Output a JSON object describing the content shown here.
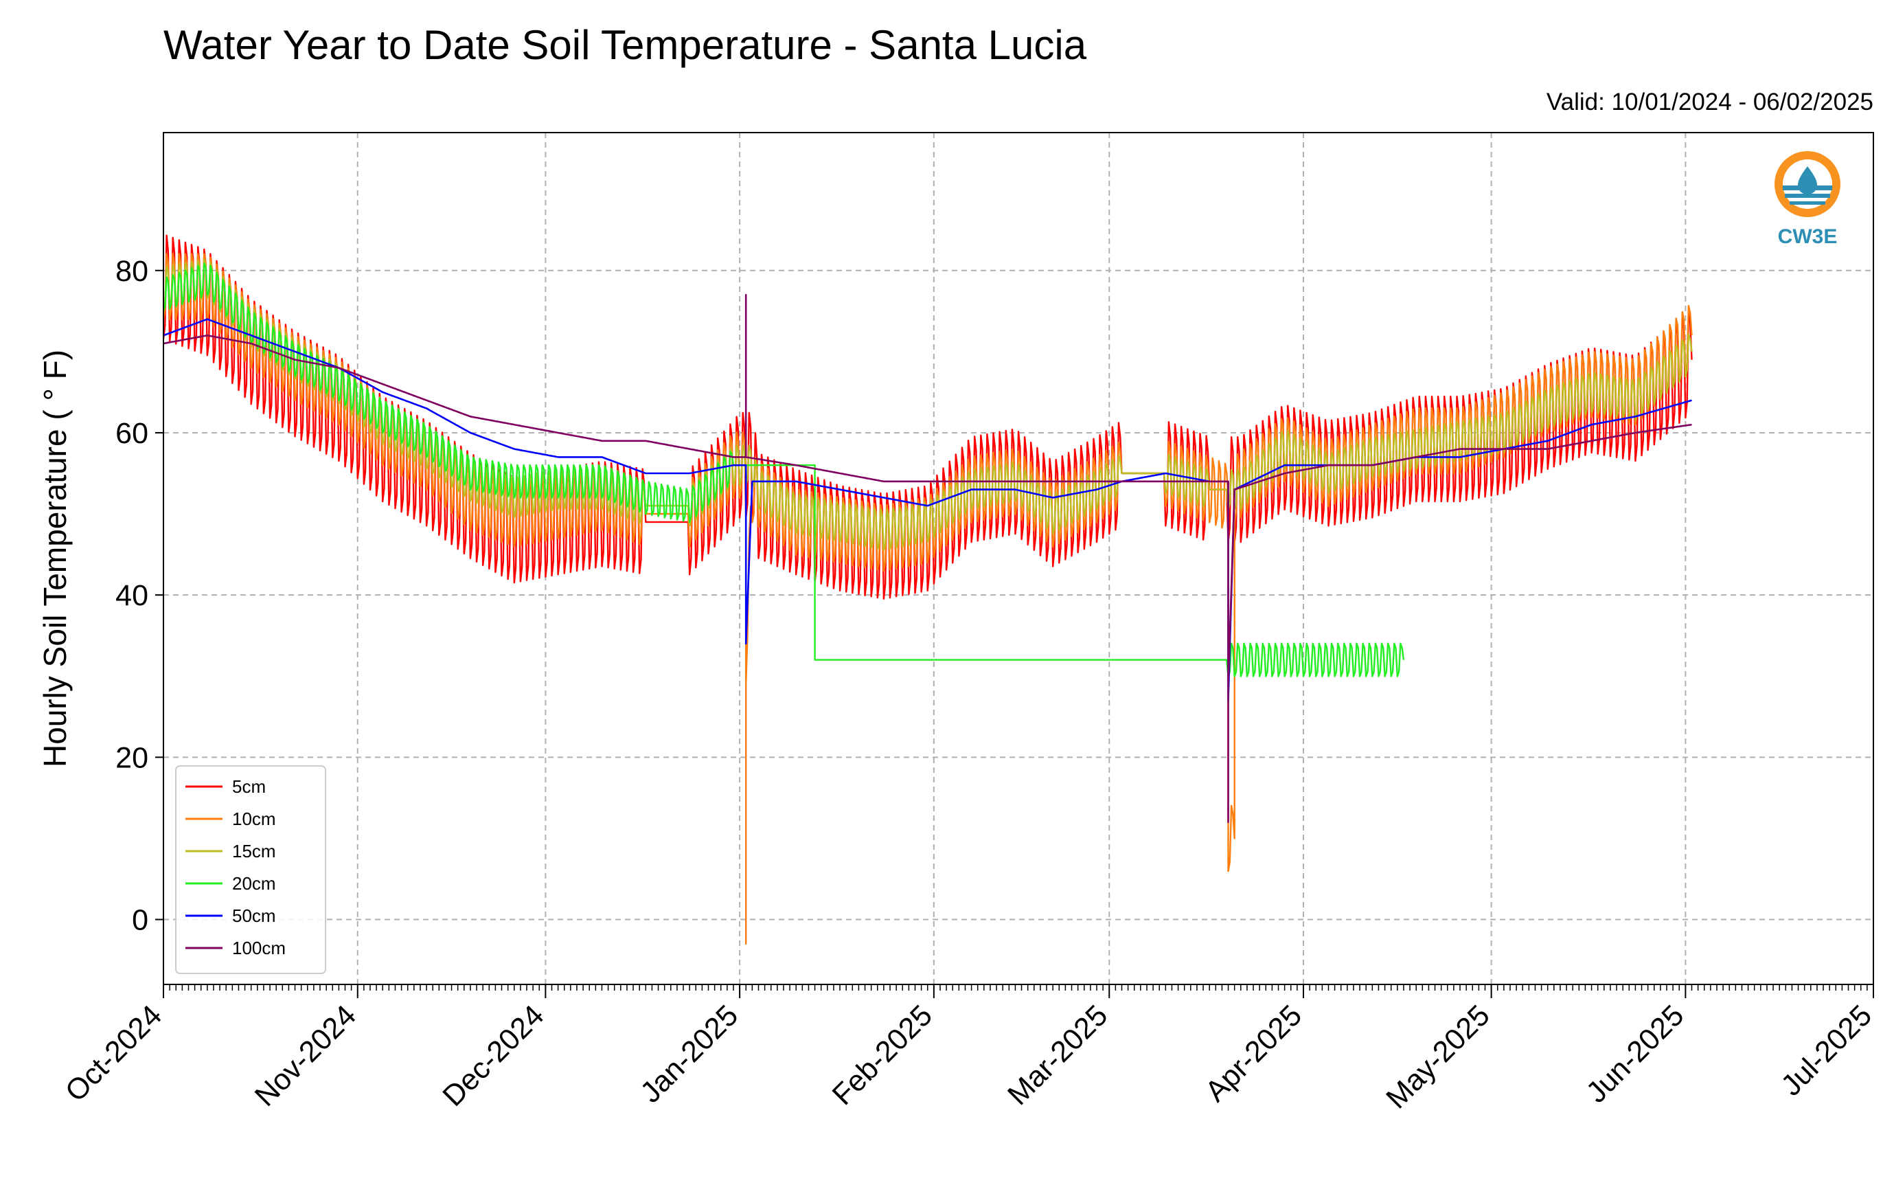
{
  "chart_data": {
    "type": "line",
    "title": "Water Year to Date Soil Temperature - Santa Lucia",
    "subtitle": "Valid: 10/01/2024 - 06/02/2025",
    "xlabel": "",
    "ylabel": "Hourly Soil Temperature ( ° F)",
    "xlim": [
      "2024-10-01",
      "2025-07-01"
    ],
    "ylim": [
      -8,
      97
    ],
    "yticks": [
      0,
      20,
      40,
      60,
      80
    ],
    "xticks": [
      {
        "date": "2024-10-01",
        "label": "Oct-2024"
      },
      {
        "date": "2024-11-01",
        "label": "Nov-2024"
      },
      {
        "date": "2024-12-01",
        "label": "Dec-2024"
      },
      {
        "date": "2025-01-01",
        "label": "Jan-2025"
      },
      {
        "date": "2025-02-01",
        "label": "Feb-2025"
      },
      {
        "date": "2025-03-01",
        "label": "Mar-2025"
      },
      {
        "date": "2025-04-01",
        "label": "Apr-2025"
      },
      {
        "date": "2025-05-01",
        "label": "May-2025"
      },
      {
        "date": "2025-06-01",
        "label": "Jun-2025"
      },
      {
        "date": "2025-07-01",
        "label": "Jul-2025"
      }
    ],
    "grid": true,
    "legend_position": "lower-left",
    "logo": "CW3E",
    "series": [
      {
        "name": "5cm",
        "color": "#ff0000",
        "daily_amplitude": 8,
        "points": [
          [
            "2024-10-01",
            78
          ],
          [
            "2024-10-08",
            76
          ],
          [
            "2024-10-15",
            70
          ],
          [
            "2024-10-22",
            66
          ],
          [
            "2024-10-29",
            63
          ],
          [
            "2024-11-05",
            58
          ],
          [
            "2024-11-12",
            55
          ],
          [
            "2024-11-19",
            51
          ],
          [
            "2024-11-26",
            48
          ],
          [
            "2024-12-03",
            49
          ],
          [
            "2024-12-10",
            50
          ],
          [
            "2024-12-17",
            49
          ],
          [
            "2024-12-24",
            49
          ],
          [
            "2024-12-31",
            55
          ],
          [
            "2025-01-01",
            56
          ],
          [
            "2025-01-03",
            56
          ],
          [
            "2025-01-04",
            51
          ],
          [
            "2025-01-10",
            49
          ],
          [
            "2025-01-17",
            47
          ],
          [
            "2025-01-24",
            46
          ],
          [
            "2025-01-31",
            47
          ],
          [
            "2025-02-07",
            53
          ],
          [
            "2025-02-14",
            54
          ],
          [
            "2025-02-20",
            50
          ],
          [
            "2025-02-27",
            53
          ],
          [
            "2025-03-03",
            55
          ],
          [
            "2025-03-10",
            55
          ],
          [
            "2025-03-17",
            53
          ],
          [
            "2025-03-22",
            53
          ],
          [
            "2025-03-29",
            57
          ],
          [
            "2025-04-05",
            55
          ],
          [
            "2025-04-12",
            56
          ],
          [
            "2025-04-19",
            58
          ],
          [
            "2025-04-26",
            58
          ],
          [
            "2025-05-03",
            59
          ],
          [
            "2025-05-10",
            62
          ],
          [
            "2025-05-17",
            64
          ],
          [
            "2025-05-24",
            63
          ],
          [
            "2025-06-02",
            69
          ]
        ]
      },
      {
        "name": "10cm",
        "color": "#ff7f0e",
        "daily_amplitude": 5,
        "points": [
          [
            "2024-10-01",
            78
          ],
          [
            "2024-10-08",
            78
          ],
          [
            "2024-10-15",
            72
          ],
          [
            "2024-10-22",
            68
          ],
          [
            "2024-10-29",
            65
          ],
          [
            "2024-11-05",
            60
          ],
          [
            "2024-11-12",
            57
          ],
          [
            "2024-11-19",
            52
          ],
          [
            "2024-11-26",
            50
          ],
          [
            "2024-12-03",
            51
          ],
          [
            "2024-12-10",
            52
          ],
          [
            "2024-12-17",
            50
          ],
          [
            "2024-12-24",
            50
          ],
          [
            "2024-12-31",
            56
          ],
          [
            "2025-01-01",
            56
          ],
          [
            "2025-01-02",
            56
          ],
          [
            "2025-01-02",
            -3
          ],
          [
            "2025-01-02",
            33
          ],
          [
            "2025-01-03",
            53
          ],
          [
            "2025-01-10",
            49
          ],
          [
            "2025-01-17",
            48
          ],
          [
            "2025-01-24",
            47
          ],
          [
            "2025-01-31",
            48
          ],
          [
            "2025-02-07",
            53
          ],
          [
            "2025-02-14",
            54
          ],
          [
            "2025-02-20",
            50
          ],
          [
            "2025-02-27",
            53
          ],
          [
            "2025-03-03",
            55
          ],
          [
            "2025-03-10",
            55
          ],
          [
            "2025-03-17",
            53
          ],
          [
            "2025-03-20",
            52
          ],
          [
            "2025-03-20",
            10
          ],
          [
            "2025-03-21",
            10
          ],
          [
            "2025-03-21",
            53
          ],
          [
            "2025-03-29",
            58
          ],
          [
            "2025-04-05",
            55
          ],
          [
            "2025-04-12",
            57
          ],
          [
            "2025-04-19",
            59
          ],
          [
            "2025-04-26",
            59
          ],
          [
            "2025-05-03",
            61
          ],
          [
            "2025-05-10",
            64
          ],
          [
            "2025-05-17",
            66
          ],
          [
            "2025-05-24",
            65
          ],
          [
            "2025-06-02",
            72
          ]
        ]
      },
      {
        "name": "15cm",
        "color": "#bcbd22",
        "daily_amplitude": 3,
        "points": [
          [
            "2024-10-01",
            78
          ],
          [
            "2024-10-08",
            79
          ],
          [
            "2024-10-15",
            73
          ],
          [
            "2024-10-22",
            69
          ],
          [
            "2024-10-29",
            66
          ],
          [
            "2024-11-05",
            61
          ],
          [
            "2024-11-12",
            58
          ],
          [
            "2024-11-19",
            54
          ],
          [
            "2024-11-26",
            52
          ],
          [
            "2024-12-03",
            53
          ],
          [
            "2024-12-10",
            53
          ],
          [
            "2024-12-17",
            51
          ],
          [
            "2024-12-24",
            51
          ],
          [
            "2024-12-31",
            56
          ],
          [
            "2025-01-03",
            56
          ],
          [
            "2025-01-04",
            53
          ],
          [
            "2025-01-10",
            50
          ],
          [
            "2025-01-17",
            49
          ],
          [
            "2025-01-24",
            48
          ],
          [
            "2025-01-31",
            49
          ],
          [
            "2025-02-07",
            53
          ],
          [
            "2025-02-14",
            54
          ],
          [
            "2025-02-20",
            50
          ],
          [
            "2025-02-27",
            53
          ],
          [
            "2025-03-03",
            55
          ],
          [
            "2025-03-10",
            55
          ],
          [
            "2025-03-17",
            53
          ],
          [
            "2025-03-22",
            53
          ],
          [
            "2025-03-29",
            58
          ],
          [
            "2025-04-05",
            55
          ],
          [
            "2025-04-12",
            57
          ],
          [
            "2025-04-19",
            58
          ],
          [
            "2025-04-26",
            59
          ],
          [
            "2025-05-03",
            60
          ],
          [
            "2025-05-10",
            63
          ],
          [
            "2025-05-17",
            65
          ],
          [
            "2025-05-24",
            64
          ],
          [
            "2025-06-02",
            70
          ]
        ]
      },
      {
        "name": "20cm",
        "color": "#22ee22",
        "daily_amplitude": 2.5,
        "points": [
          [
            "2024-10-01",
            77
          ],
          [
            "2024-10-08",
            79
          ],
          [
            "2024-10-15",
            73
          ],
          [
            "2024-10-22",
            69
          ],
          [
            "2024-10-29",
            66
          ],
          [
            "2024-11-05",
            62
          ],
          [
            "2024-11-12",
            59
          ],
          [
            "2024-11-19",
            55
          ],
          [
            "2024-11-26",
            54
          ],
          [
            "2024-12-03",
            54
          ],
          [
            "2024-12-10",
            54
          ],
          [
            "2024-12-17",
            52
          ],
          [
            "2024-12-24",
            51
          ],
          [
            "2024-12-31",
            56
          ],
          [
            "2025-01-13",
            56
          ],
          [
            "2025-01-13",
            32
          ],
          [
            "2025-04-17",
            32
          ]
        ]
      },
      {
        "name": "50cm",
        "color": "#0000ff",
        "daily_amplitude": 0,
        "points": [
          [
            "2024-10-01",
            72
          ],
          [
            "2024-10-08",
            74
          ],
          [
            "2024-10-15",
            72
          ],
          [
            "2024-10-22",
            70
          ],
          [
            "2024-10-29",
            68
          ],
          [
            "2024-11-05",
            65
          ],
          [
            "2024-11-12",
            63
          ],
          [
            "2024-11-19",
            60
          ],
          [
            "2024-11-26",
            58
          ],
          [
            "2024-12-03",
            57
          ],
          [
            "2024-12-10",
            57
          ],
          [
            "2024-12-17",
            55
          ],
          [
            "2024-12-24",
            55
          ],
          [
            "2024-12-31",
            56
          ],
          [
            "2025-01-02",
            56
          ],
          [
            "2025-01-02",
            34
          ],
          [
            "2025-01-03",
            54
          ],
          [
            "2025-01-10",
            54
          ],
          [
            "2025-01-17",
            53
          ],
          [
            "2025-01-24",
            52
          ],
          [
            "2025-01-31",
            51
          ],
          [
            "2025-02-07",
            53
          ],
          [
            "2025-02-14",
            53
          ],
          [
            "2025-02-20",
            52
          ],
          [
            "2025-02-27",
            53
          ],
          [
            "2025-03-03",
            54
          ],
          [
            "2025-03-10",
            55
          ],
          [
            "2025-03-17",
            54
          ],
          [
            "2025-03-20",
            54
          ],
          [
            "2025-03-20",
            27
          ],
          [
            "2025-03-21",
            53
          ],
          [
            "2025-03-29",
            56
          ],
          [
            "2025-04-05",
            56
          ],
          [
            "2025-04-12",
            56
          ],
          [
            "2025-04-19",
            57
          ],
          [
            "2025-04-26",
            57
          ],
          [
            "2025-05-03",
            58
          ],
          [
            "2025-05-10",
            59
          ],
          [
            "2025-05-17",
            61
          ],
          [
            "2025-05-24",
            62
          ],
          [
            "2025-06-02",
            64
          ]
        ]
      },
      {
        "name": "100cm",
        "color": "#800060",
        "daily_amplitude": 0,
        "points": [
          [
            "2024-10-01",
            71
          ],
          [
            "2024-10-08",
            72
          ],
          [
            "2024-10-15",
            71
          ],
          [
            "2024-10-22",
            69
          ],
          [
            "2024-10-29",
            68
          ],
          [
            "2024-11-05",
            66
          ],
          [
            "2024-11-12",
            64
          ],
          [
            "2024-11-19",
            62
          ],
          [
            "2024-11-26",
            61
          ],
          [
            "2024-12-03",
            60
          ],
          [
            "2024-12-10",
            59
          ],
          [
            "2024-12-17",
            59
          ],
          [
            "2024-12-24",
            58
          ],
          [
            "2024-12-31",
            57
          ],
          [
            "2025-01-02",
            57
          ],
          [
            "2025-01-02",
            77
          ],
          [
            "2025-01-02",
            57
          ],
          [
            "2025-01-10",
            56
          ],
          [
            "2025-01-17",
            55
          ],
          [
            "2025-01-24",
            54
          ],
          [
            "2025-01-31",
            54
          ],
          [
            "2025-02-07",
            54
          ],
          [
            "2025-02-14",
            54
          ],
          [
            "2025-02-20",
            54
          ],
          [
            "2025-02-27",
            54
          ],
          [
            "2025-03-03",
            54
          ],
          [
            "2025-03-10",
            54
          ],
          [
            "2025-03-17",
            54
          ],
          [
            "2025-03-20",
            54
          ],
          [
            "2025-03-20",
            12
          ],
          [
            "2025-03-20",
            29
          ],
          [
            "2025-03-21",
            53
          ],
          [
            "2025-03-29",
            55
          ],
          [
            "2025-04-05",
            56
          ],
          [
            "2025-04-12",
            56
          ],
          [
            "2025-04-19",
            57
          ],
          [
            "2025-04-26",
            58
          ],
          [
            "2025-05-03",
            58
          ],
          [
            "2025-05-10",
            58
          ],
          [
            "2025-05-17",
            59
          ],
          [
            "2025-05-24",
            60
          ],
          [
            "2025-06-02",
            61
          ]
        ]
      }
    ]
  }
}
